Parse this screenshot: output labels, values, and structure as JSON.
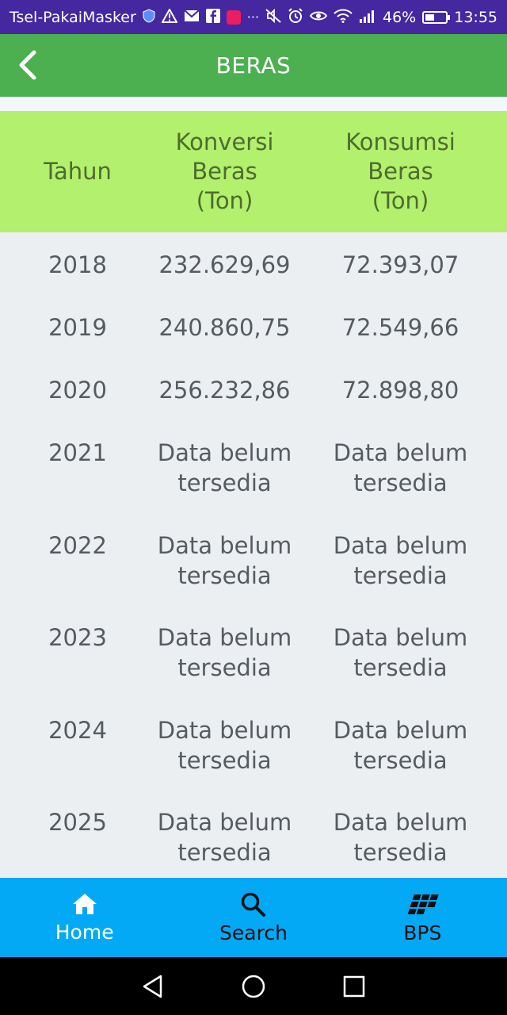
{
  "status_bar": {
    "carrier": "Tsel-PakaiMasker",
    "battery_percent": "46%",
    "time": "13:55",
    "battery_level": 0.46
  },
  "app_bar": {
    "title": "BERAS"
  },
  "table": {
    "headers": [
      [
        "Tahun"
      ],
      [
        "Konversi",
        "Beras",
        "(Ton)"
      ],
      [
        "Konsumsi",
        "Beras",
        "(Ton)"
      ]
    ],
    "rows": [
      {
        "year": "2018",
        "konversi": [
          "232.629,69"
        ],
        "konsumsi": [
          "72.393,07"
        ]
      },
      {
        "year": "2019",
        "konversi": [
          "240.860,75"
        ],
        "konsumsi": [
          "72.549,66"
        ]
      },
      {
        "year": "2020",
        "konversi": [
          "256.232,86"
        ],
        "konsumsi": [
          "72.898,80"
        ]
      },
      {
        "year": "2021",
        "konversi": [
          "Data belum",
          "tersedia"
        ],
        "konsumsi": [
          "Data belum",
          "tersedia"
        ]
      },
      {
        "year": "2022",
        "konversi": [
          "Data belum",
          "tersedia"
        ],
        "konsumsi": [
          "Data belum",
          "tersedia"
        ]
      },
      {
        "year": "2023",
        "konversi": [
          "Data belum",
          "tersedia"
        ],
        "konsumsi": [
          "Data belum",
          "tersedia"
        ]
      },
      {
        "year": "2024",
        "konversi": [
          "Data belum",
          "tersedia"
        ],
        "konsumsi": [
          "Data belum",
          "tersedia"
        ]
      },
      {
        "year": "2025",
        "konversi": [
          "Data belum",
          "tersedia"
        ],
        "konsumsi": [
          "Data belum",
          "tersedia"
        ]
      }
    ]
  },
  "bottom_nav": {
    "items": [
      {
        "label": "Home",
        "icon": "home-icon",
        "active": true
      },
      {
        "label": "Search",
        "icon": "search-icon",
        "active": false
      },
      {
        "label": "BPS",
        "icon": "bps-logo-icon",
        "active": false
      }
    ]
  },
  "colors": {
    "status_bar": "#4527a0",
    "app_bar": "#4caf50",
    "table_header": "#b2f06e",
    "table_body": "#eceff1",
    "bottom_nav": "#03a9f4",
    "system_nav": "#000000"
  }
}
